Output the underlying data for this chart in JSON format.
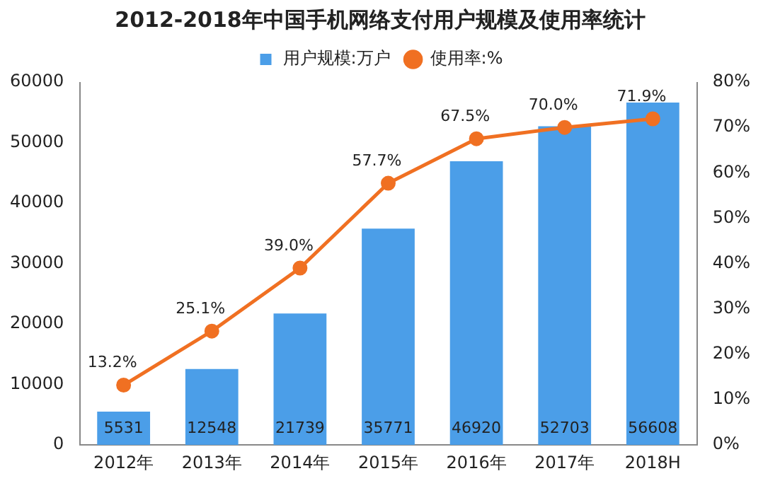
{
  "chart_data": {
    "type": "bar",
    "title": "2012-2018年中国手机网络支付用户规模及使用率统计",
    "categories": [
      "2012年",
      "2013年",
      "2014年",
      "2015年",
      "2016年",
      "2017年",
      "2018H"
    ],
    "series": [
      {
        "name": "用户规模:万户",
        "color": "#4b9ee8",
        "values": [
          5531,
          12548,
          21739,
          35771,
          46920,
          52703,
          56608
        ],
        "value_labels": [
          "5531",
          "12548",
          "21739",
          "35771",
          "46920",
          "52703",
          "56608"
        ]
      },
      {
        "name": "使用率:%",
        "type": "line",
        "axis": "y2",
        "color": "#f07022",
        "marker": "circle",
        "values": [
          13.2,
          25.1,
          39.0,
          57.7,
          67.5,
          70.0,
          71.9
        ],
        "value_labels": [
          "13.2%",
          "25.1%",
          "39.0%",
          "57.7%",
          "67.5%",
          "70.0%",
          "71.9%"
        ]
      }
    ],
    "ylim": [
      0,
      60000
    ],
    "yticks": [
      0,
      10000,
      20000,
      30000,
      40000,
      50000,
      60000
    ],
    "y2lim": [
      0,
      80
    ],
    "y2ticks": [
      {
        "value": 0,
        "label": "0%"
      },
      {
        "value": 10,
        "label": "10%"
      },
      {
        "value": 20,
        "label": "20%"
      },
      {
        "value": 30,
        "label": "30%"
      },
      {
        "value": 40,
        "label": "40%"
      },
      {
        "value": 50,
        "label": "50%"
      },
      {
        "value": 60,
        "label": "60%"
      },
      {
        "value": 70,
        "label": "70%"
      },
      {
        "value": 80,
        "label": "80%"
      }
    ],
    "grid": false,
    "legend": "top"
  }
}
